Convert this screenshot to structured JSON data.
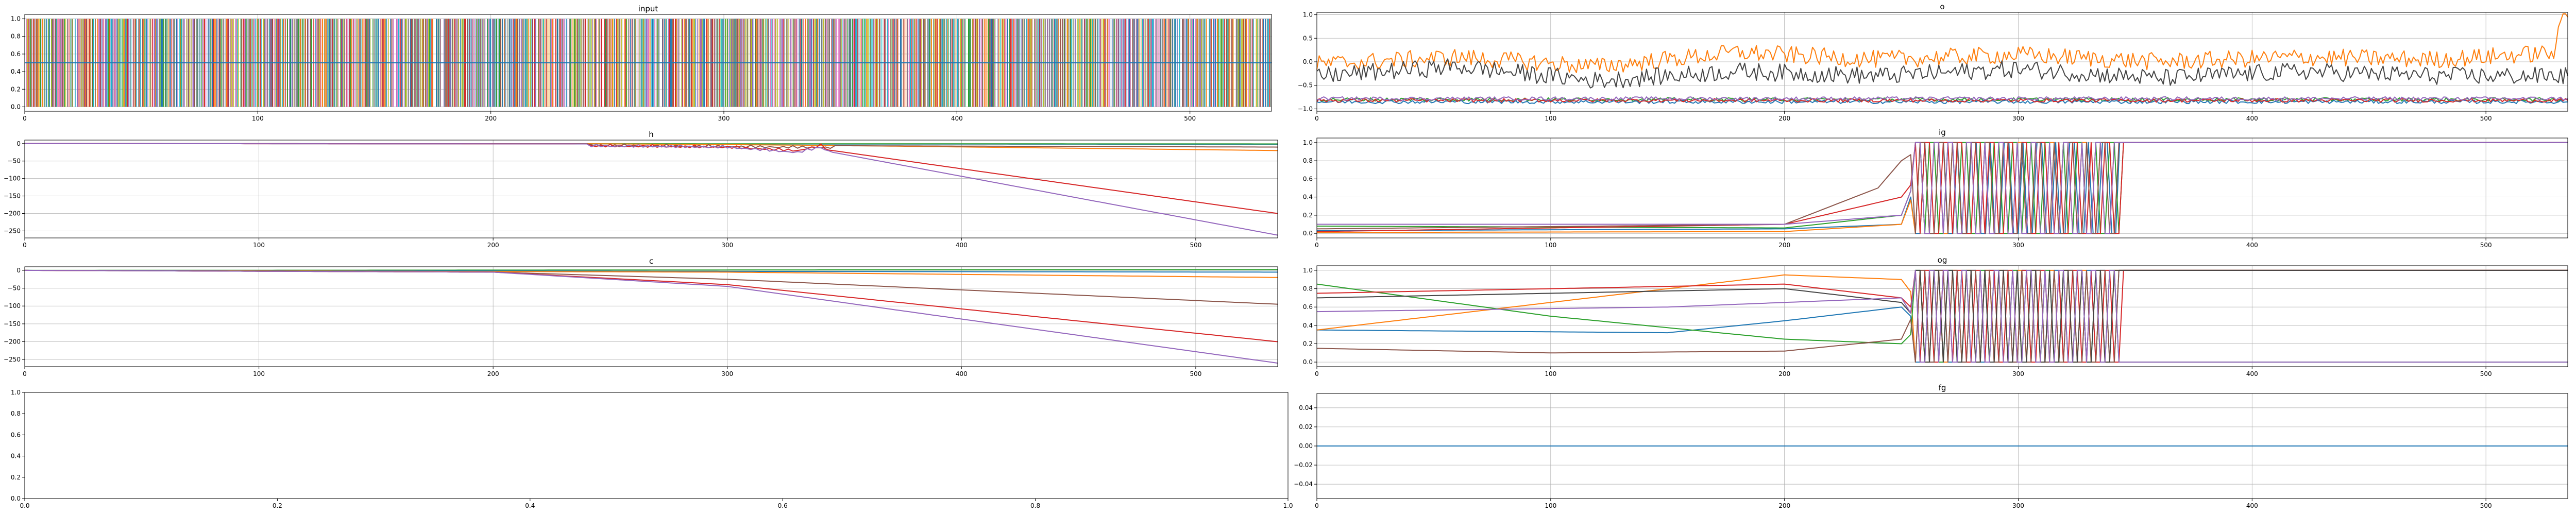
{
  "chart_data": [
    {
      "id": "input",
      "title": "input",
      "type": "line",
      "xlim": [
        0,
        535
      ],
      "ylim": [
        -0.05,
        1.05
      ],
      "grid": true,
      "xticks": [
        0,
        100,
        200,
        300,
        400,
        500
      ],
      "xtick_labels": [
        "0",
        "100",
        "200",
        "300",
        "400",
        "500"
      ],
      "yticks": [
        0,
        0.2,
        0.4,
        0.6,
        0.8,
        1.0
      ],
      "ytick_labels": [
        "0.0",
        "0.2",
        "0.4",
        "0.6",
        "0.8",
        "1.0"
      ],
      "series": [
        {
          "color": "#1f77b4",
          "x": [
            0,
            535
          ],
          "y": [
            0.5,
            0.5
          ]
        }
      ]
    },
    {
      "id": "o",
      "title": "o",
      "type": "line",
      "xlim": [
        0,
        535
      ],
      "ylim": [
        -1.05,
        1.05
      ],
      "grid": true,
      "xticks": [
        0,
        100,
        200,
        300,
        400,
        500
      ],
      "xtick_labels": [
        "0",
        "100",
        "200",
        "300",
        "400",
        "500"
      ],
      "yticks": [
        -1.0,
        -0.5,
        0.0,
        0.5,
        1.0
      ],
      "ytick_labels": [
        "−1.0",
        "−0.5",
        "0.0",
        "0.5",
        "1.0"
      ],
      "series": [
        {
          "color": "#ff7f0e",
          "x": [
            0,
            60,
            120,
            180,
            240,
            300,
            360,
            420,
            480,
            530,
            532,
            535
          ],
          "y": [
            -0.05,
            0.1,
            -0.1,
            0.2,
            0.05,
            0.15,
            0.0,
            0.1,
            0.05,
            0.2,
            0.95,
            0.95
          ]
        },
        {
          "color": "#2ca02c",
          "x": [
            0,
            535
          ],
          "y": [
            -0.8,
            -0.8
          ]
        },
        {
          "color": "#1f77b4",
          "x": [
            0,
            535
          ],
          "y": [
            -0.85,
            -0.85
          ]
        },
        {
          "color": "#d62728",
          "x": [
            0,
            535
          ],
          "y": [
            -0.82,
            -0.82
          ]
        },
        {
          "color": "#444444",
          "x": [
            0,
            60,
            120,
            180,
            240,
            300,
            360,
            420,
            480,
            535
          ],
          "y": [
            -0.3,
            -0.1,
            -0.4,
            -0.2,
            -0.3,
            -0.15,
            -0.35,
            -0.2,
            -0.3,
            -0.3
          ]
        },
        {
          "color": "#9467bd",
          "x": [
            0,
            535
          ],
          "y": [
            -0.78,
            -0.78
          ]
        }
      ]
    },
    {
      "id": "h",
      "title": "h",
      "type": "line",
      "xlim": [
        0,
        535
      ],
      "ylim": [
        -270,
        10
      ],
      "grid": true,
      "xticks": [
        0,
        100,
        200,
        300,
        400,
        500
      ],
      "xtick_labels": [
        "0",
        "100",
        "200",
        "300",
        "400",
        "500"
      ],
      "yticks": [
        0,
        -50,
        -100,
        -150,
        -200,
        -250
      ],
      "ytick_labels": [
        "0",
        "−50",
        "−100",
        "−150",
        "−200",
        "−250"
      ],
      "series": [
        {
          "color": "#1f77b4",
          "x": [
            0,
            535
          ],
          "y": [
            0,
            -2
          ]
        },
        {
          "color": "#2ca02c",
          "x": [
            0,
            535
          ],
          "y": [
            0,
            -1
          ]
        },
        {
          "color": "#ff7f0e",
          "x": [
            0,
            240,
            300,
            340,
            535
          ],
          "y": [
            0,
            -0.5,
            -3,
            -5,
            -20
          ]
        },
        {
          "color": "#8c564b",
          "x": [
            0,
            240,
            300,
            340,
            535
          ],
          "y": [
            0,
            -0.5,
            -3,
            -6,
            -10
          ]
        },
        {
          "color": "#d62728",
          "x": [
            0,
            240,
            300,
            330,
            340,
            345,
            535
          ],
          "y": [
            0,
            -1,
            -5,
            -15,
            0,
            -20,
            -200
          ]
        },
        {
          "color": "#9467bd",
          "x": [
            0,
            240,
            300,
            330,
            340,
            345,
            535
          ],
          "y": [
            0,
            -1,
            -5,
            -20,
            -5,
            -25,
            -262
          ]
        }
      ]
    },
    {
      "id": "ig",
      "title": "ig",
      "type": "line",
      "xlim": [
        0,
        535
      ],
      "ylim": [
        -0.05,
        1.05
      ],
      "grid": true,
      "xticks": [
        0,
        100,
        200,
        300,
        400,
        500
      ],
      "xtick_labels": [
        "0",
        "100",
        "200",
        "300",
        "400",
        "500"
      ],
      "yticks": [
        0,
        0.2,
        0.4,
        0.6,
        0.8,
        1.0
      ],
      "ytick_labels": [
        "0.0",
        "0.2",
        "0.4",
        "0.6",
        "0.8",
        "1.0"
      ],
      "series": [
        {
          "color": "#1f77b4",
          "x": [
            0,
            200,
            250,
            262,
            300,
            340,
            345,
            535
          ],
          "y": [
            0.03,
            0.05,
            0.1,
            1.0,
            0.5,
            1.0,
            1.0,
            1.0
          ]
        },
        {
          "color": "#ff7f0e",
          "x": [
            0,
            200,
            250,
            262,
            345,
            535
          ],
          "y": [
            0.01,
            0.02,
            0.1,
            0.9,
            1.0,
            1.0
          ]
        },
        {
          "color": "#2ca02c",
          "x": [
            0,
            200,
            250,
            262,
            345,
            535
          ],
          "y": [
            0.08,
            0.06,
            0.2,
            1.0,
            1.0,
            1.0
          ]
        },
        {
          "color": "#d62728",
          "x": [
            0,
            200,
            250,
            262,
            345,
            535
          ],
          "y": [
            0.02,
            0.1,
            0.4,
            0.8,
            1.0,
            1.0
          ]
        },
        {
          "color": "#8c564b",
          "x": [
            0,
            200,
            240,
            250,
            262,
            345,
            535
          ],
          "y": [
            0.05,
            0.1,
            0.5,
            0.8,
            1.0,
            1.0,
            1.0
          ]
        },
        {
          "color": "#9467bd",
          "x": [
            0,
            200,
            250,
            262,
            345,
            535
          ],
          "y": [
            0.1,
            0.1,
            0.2,
            1.0,
            1.0,
            1.0
          ]
        }
      ]
    },
    {
      "id": "c",
      "title": "c",
      "type": "line",
      "xlim": [
        0,
        535
      ],
      "ylim": [
        -270,
        10
      ],
      "grid": true,
      "xticks": [
        0,
        100,
        200,
        300,
        400,
        500
      ],
      "xtick_labels": [
        "0",
        "100",
        "200",
        "300",
        "400",
        "500"
      ],
      "yticks": [
        0,
        -50,
        -100,
        -150,
        -200,
        -250
      ],
      "ytick_labels": [
        "0",
        "−50",
        "−100",
        "−150",
        "−200",
        "−250"
      ],
      "series": [
        {
          "color": "#2ca02c",
          "x": [
            0,
            535
          ],
          "y": [
            0,
            2
          ]
        },
        {
          "color": "#1f77b4",
          "x": [
            0,
            535
          ],
          "y": [
            0,
            -5
          ]
        },
        {
          "color": "#ff7f0e",
          "x": [
            0,
            300,
            535
          ],
          "y": [
            0,
            -5,
            -20
          ]
        },
        {
          "color": "#8c564b",
          "x": [
            0,
            200,
            300,
            535
          ],
          "y": [
            0,
            -5,
            -25,
            -95
          ]
        },
        {
          "color": "#d62728",
          "x": [
            0,
            200,
            300,
            535
          ],
          "y": [
            0,
            -5,
            -40,
            -200
          ]
        },
        {
          "color": "#9467bd",
          "x": [
            0,
            200,
            300,
            535
          ],
          "y": [
            0,
            -5,
            -45,
            -260
          ]
        }
      ]
    },
    {
      "id": "og",
      "title": "og",
      "type": "line",
      "xlim": [
        0,
        535
      ],
      "ylim": [
        -0.05,
        1.05
      ],
      "grid": true,
      "xticks": [
        0,
        100,
        200,
        300,
        400,
        500
      ],
      "xtick_labels": [
        "0",
        "100",
        "200",
        "300",
        "400",
        "500"
      ],
      "yticks": [
        0,
        0.2,
        0.4,
        0.6,
        0.8,
        1.0
      ],
      "ytick_labels": [
        "0.0",
        "0.2",
        "0.4",
        "0.6",
        "0.8",
        "1.0"
      ],
      "series": [
        {
          "color": "#1f77b4",
          "x": [
            0,
            150,
            200,
            250,
            262,
            345,
            535
          ],
          "y": [
            0.35,
            0.32,
            0.45,
            0.6,
            0.3,
            1.0,
            1.0
          ]
        },
        {
          "color": "#ff7f0e",
          "x": [
            0,
            100,
            200,
            250,
            262,
            345,
            535
          ],
          "y": [
            0.35,
            0.65,
            0.95,
            0.9,
            0.5,
            1.0,
            1.0
          ]
        },
        {
          "color": "#2ca02c",
          "x": [
            0,
            100,
            200,
            250,
            262,
            345,
            535
          ],
          "y": [
            0.85,
            0.5,
            0.25,
            0.2,
            0.5,
            0.0,
            0.0
          ]
        },
        {
          "color": "#d62728",
          "x": [
            0,
            100,
            200,
            250,
            262,
            345,
            535
          ],
          "y": [
            0.75,
            0.8,
            0.85,
            0.7,
            0.4,
            1.0,
            1.0
          ]
        },
        {
          "color": "#8c564b",
          "x": [
            0,
            100,
            200,
            250,
            262,
            345,
            535
          ],
          "y": [
            0.15,
            0.1,
            0.12,
            0.25,
            0.9,
            1.0,
            1.0
          ]
        },
        {
          "color": "#444444",
          "x": [
            0,
            100,
            200,
            250,
            262,
            345,
            535
          ],
          "y": [
            0.7,
            0.75,
            0.8,
            0.65,
            0.3,
            1.0,
            1.0
          ]
        },
        {
          "color": "#9467bd",
          "x": [
            0,
            150,
            250,
            262,
            345,
            535
          ],
          "y": [
            0.55,
            0.6,
            0.7,
            0.2,
            0.0,
            0.0
          ]
        }
      ]
    },
    {
      "id": "empty",
      "title": "",
      "type": "line",
      "xlim": [
        0,
        1
      ],
      "ylim": [
        0,
        1
      ],
      "grid": false,
      "xticks": [
        0,
        0.2,
        0.4,
        0.6,
        0.8,
        1.0
      ],
      "xtick_labels": [
        "0.0",
        "0.2",
        "0.4",
        "0.6",
        "0.8",
        "1.0"
      ],
      "yticks": [
        0,
        0.2,
        0.4,
        0.6,
        0.8,
        1.0
      ],
      "ytick_labels": [
        "0.0",
        "0.2",
        "0.4",
        "0.6",
        "0.8",
        "1.0"
      ],
      "series": []
    },
    {
      "id": "fg",
      "title": "fg",
      "type": "line",
      "xlim": [
        0,
        535
      ],
      "ylim": [
        -0.055,
        0.055
      ],
      "grid": true,
      "xticks": [
        0,
        100,
        200,
        300,
        400,
        500
      ],
      "xtick_labels": [
        "0",
        "100",
        "200",
        "300",
        "400",
        "500"
      ],
      "yticks": [
        0.04,
        0.02,
        0.0,
        -0.02,
        -0.04
      ],
      "ytick_labels": [
        "0.04",
        "0.02",
        "0.00",
        "−0.02",
        "−0.04"
      ],
      "series": [
        {
          "color": "#1f77b4",
          "x": [
            0,
            535
          ],
          "y": [
            0,
            0
          ]
        }
      ]
    }
  ]
}
